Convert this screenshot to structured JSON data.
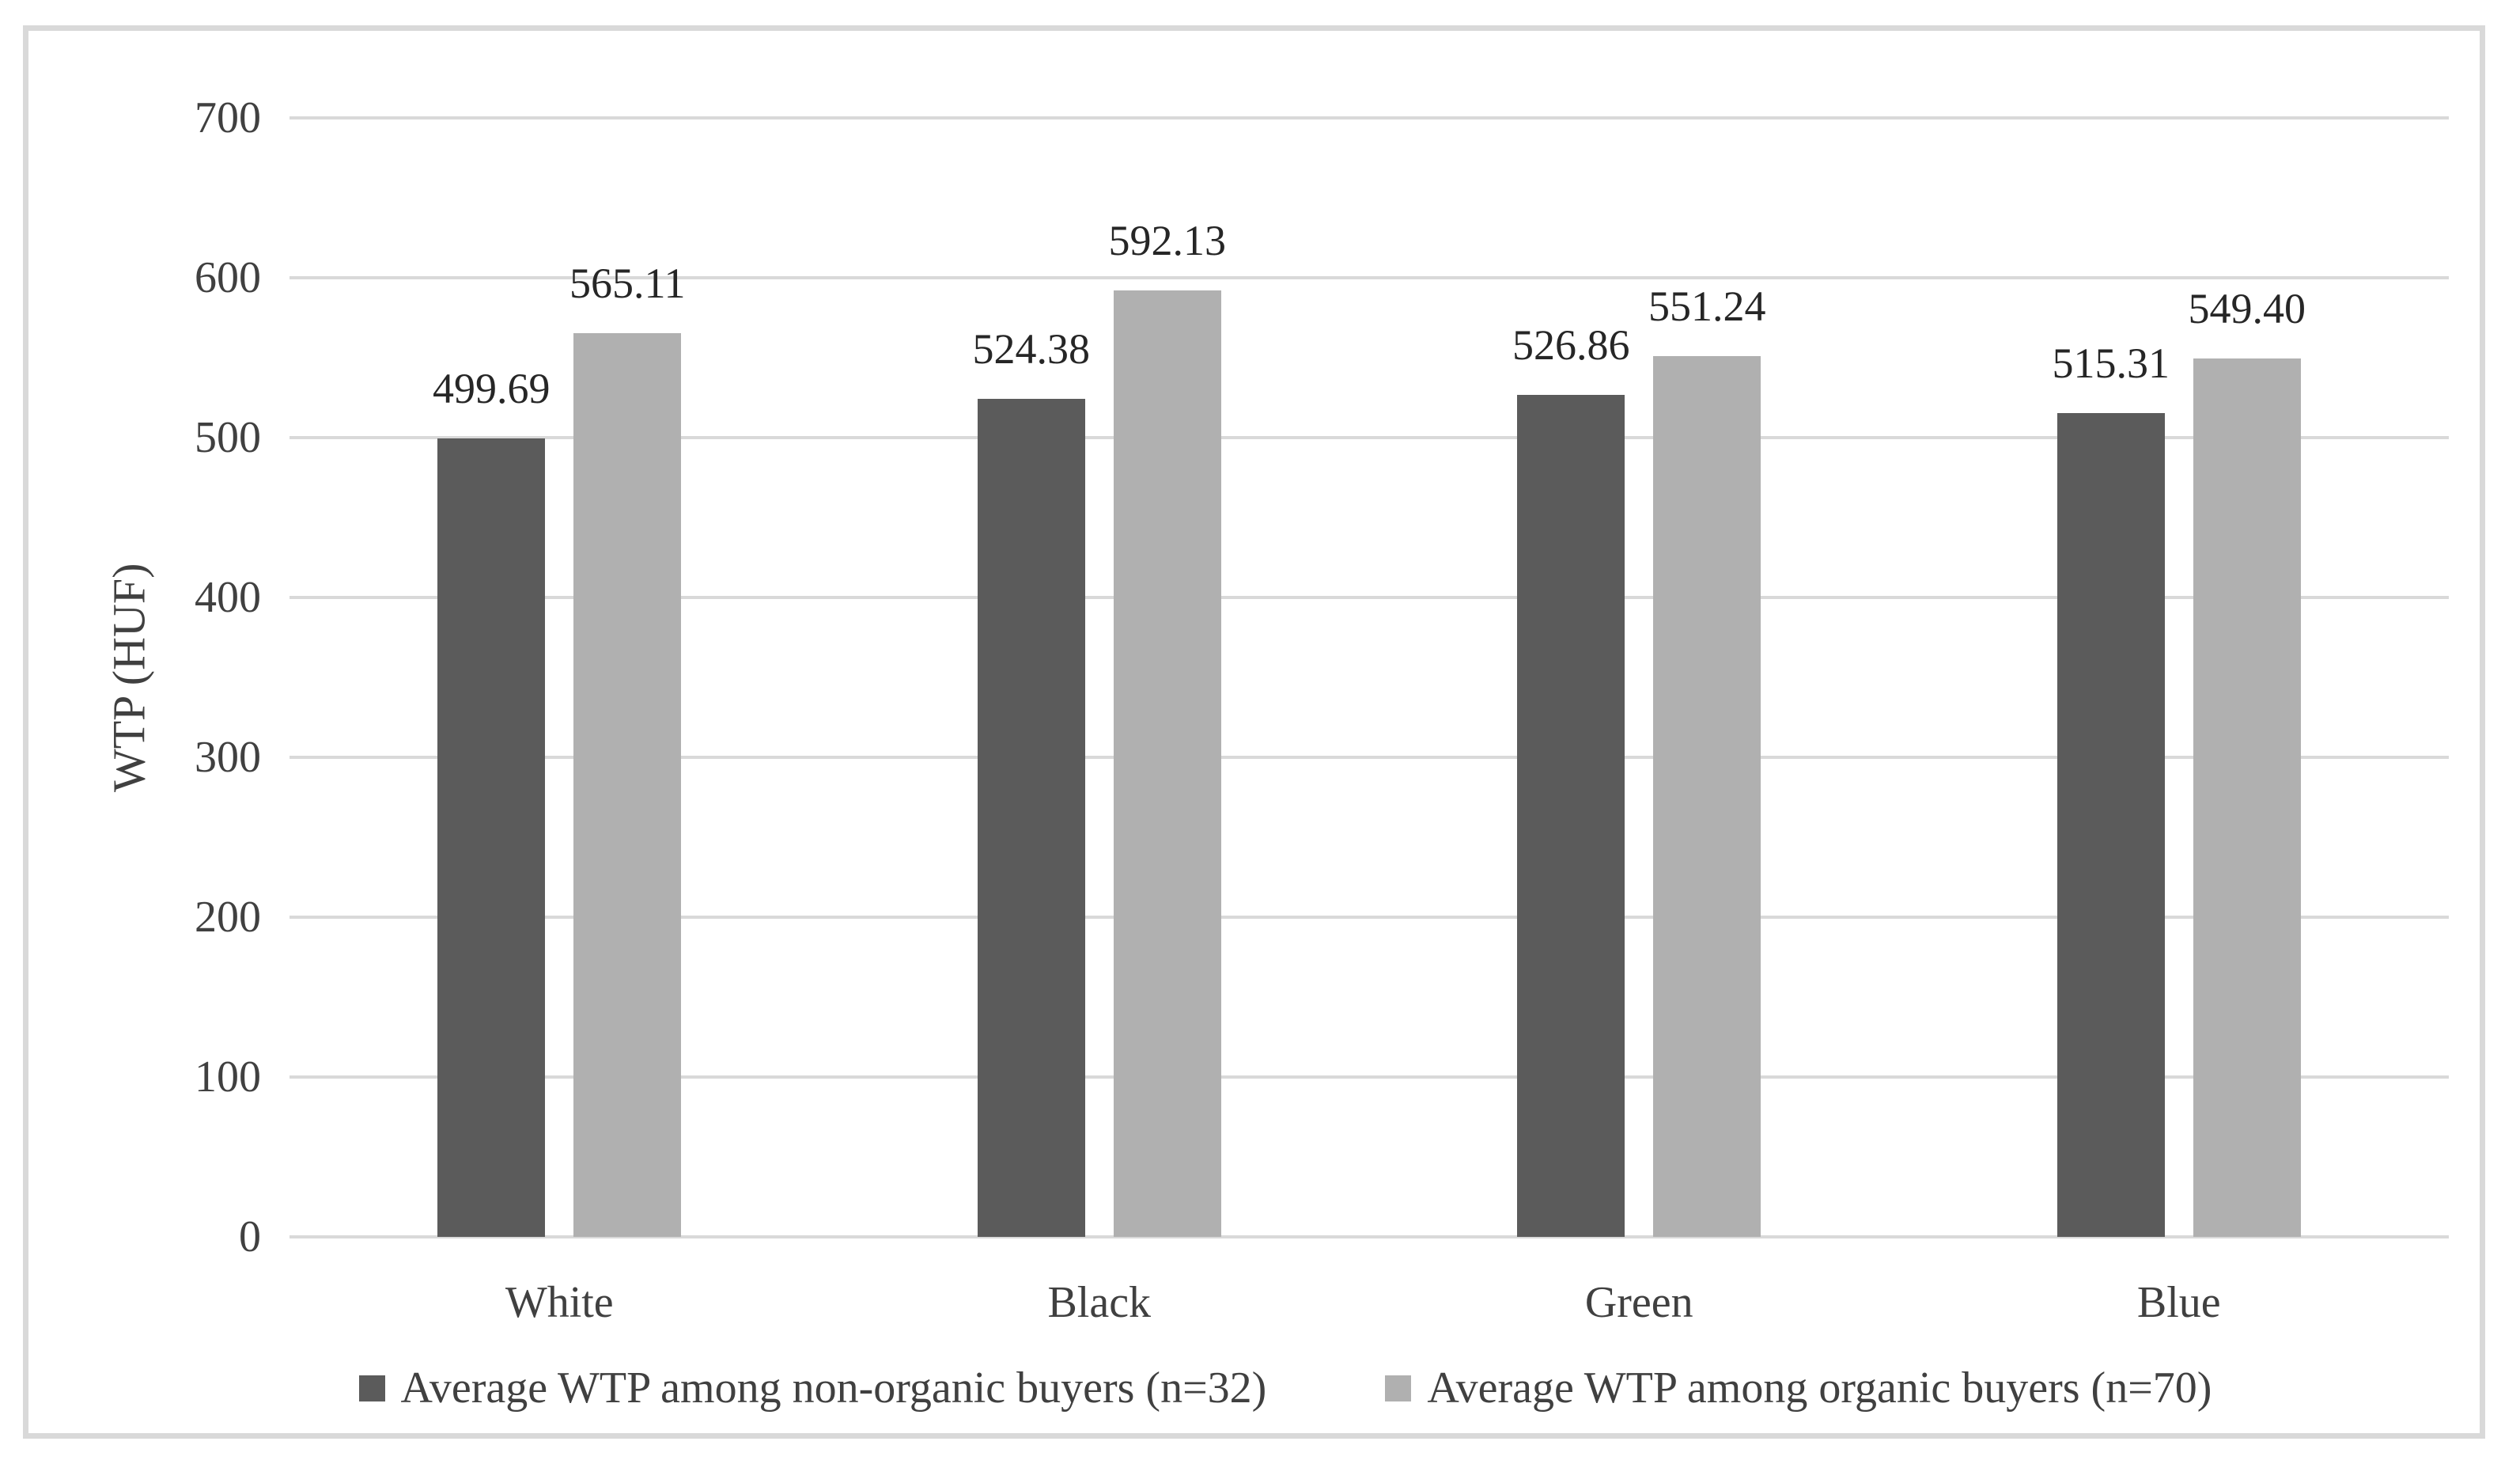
{
  "frame": {
    "border_color": "#D9D9D9",
    "background": "#FFFFFF"
  },
  "chart_data": {
    "type": "bar",
    "title": "",
    "categories": [
      "White",
      "Black",
      "Green",
      "Blue"
    ],
    "series": [
      {
        "name": "Average WTP among non-organic buyers (n=32)",
        "color": "#5B5B5B",
        "values": [
          499.69,
          524.38,
          526.86,
          515.31
        ],
        "value_labels": [
          "499.69",
          "524.38",
          "526.86",
          "515.31"
        ]
      },
      {
        "name": "Average WTP among organic buyers (n=70)",
        "color": "#B0B0B0",
        "values": [
          565.11,
          592.13,
          551.24,
          549.4
        ],
        "value_labels": [
          "565.11",
          "592.13",
          "551.24",
          "549.40"
        ]
      }
    ],
    "xlabel": "",
    "ylabel": "WTP (HUF)",
    "ylim": [
      0,
      700
    ],
    "yticks": [
      0,
      100,
      200,
      300,
      400,
      500,
      600,
      700
    ],
    "grid": true,
    "gridline_color": "#D9D9D9",
    "axis_text_color": "#404040",
    "data_label_color": "#262626",
    "legend_position": "bottom"
  }
}
